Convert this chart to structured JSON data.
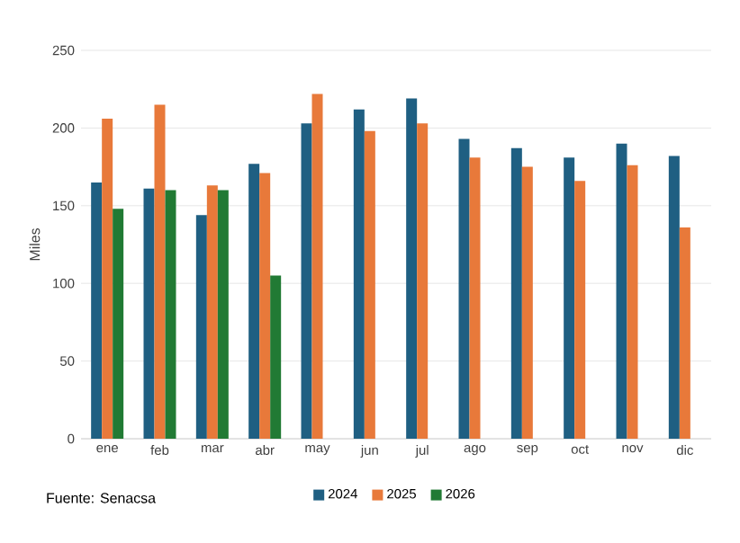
{
  "chart_data": {
    "type": "bar",
    "ylabel": "Miles",
    "categories": [
      "ene",
      "feb",
      "mar",
      "abr",
      "may",
      "jun",
      "jul",
      "ago",
      "sep",
      "oct",
      "nov",
      "dic"
    ],
    "series": [
      {
        "name": "2024",
        "color": "#1f5f82",
        "values": [
          165,
          161,
          144,
          177,
          203,
          212,
          219,
          193,
          187,
          181,
          190,
          182
        ]
      },
      {
        "name": "2025",
        "color": "#e8793a",
        "values": [
          206,
          215,
          163,
          171,
          222,
          198,
          203,
          181,
          175,
          166,
          176,
          136
        ]
      },
      {
        "name": "2026",
        "color": "#217a34",
        "values": [
          148,
          160,
          160,
          105,
          null,
          null,
          null,
          null,
          null,
          null,
          null,
          null
        ]
      }
    ],
    "ylim": [
      0,
      250
    ],
    "yticks": [
      0,
      50,
      100,
      150,
      200,
      250
    ],
    "grid": "y",
    "legend": "bottom",
    "annotations": [
      "Fuente: Senacsa"
    ]
  }
}
